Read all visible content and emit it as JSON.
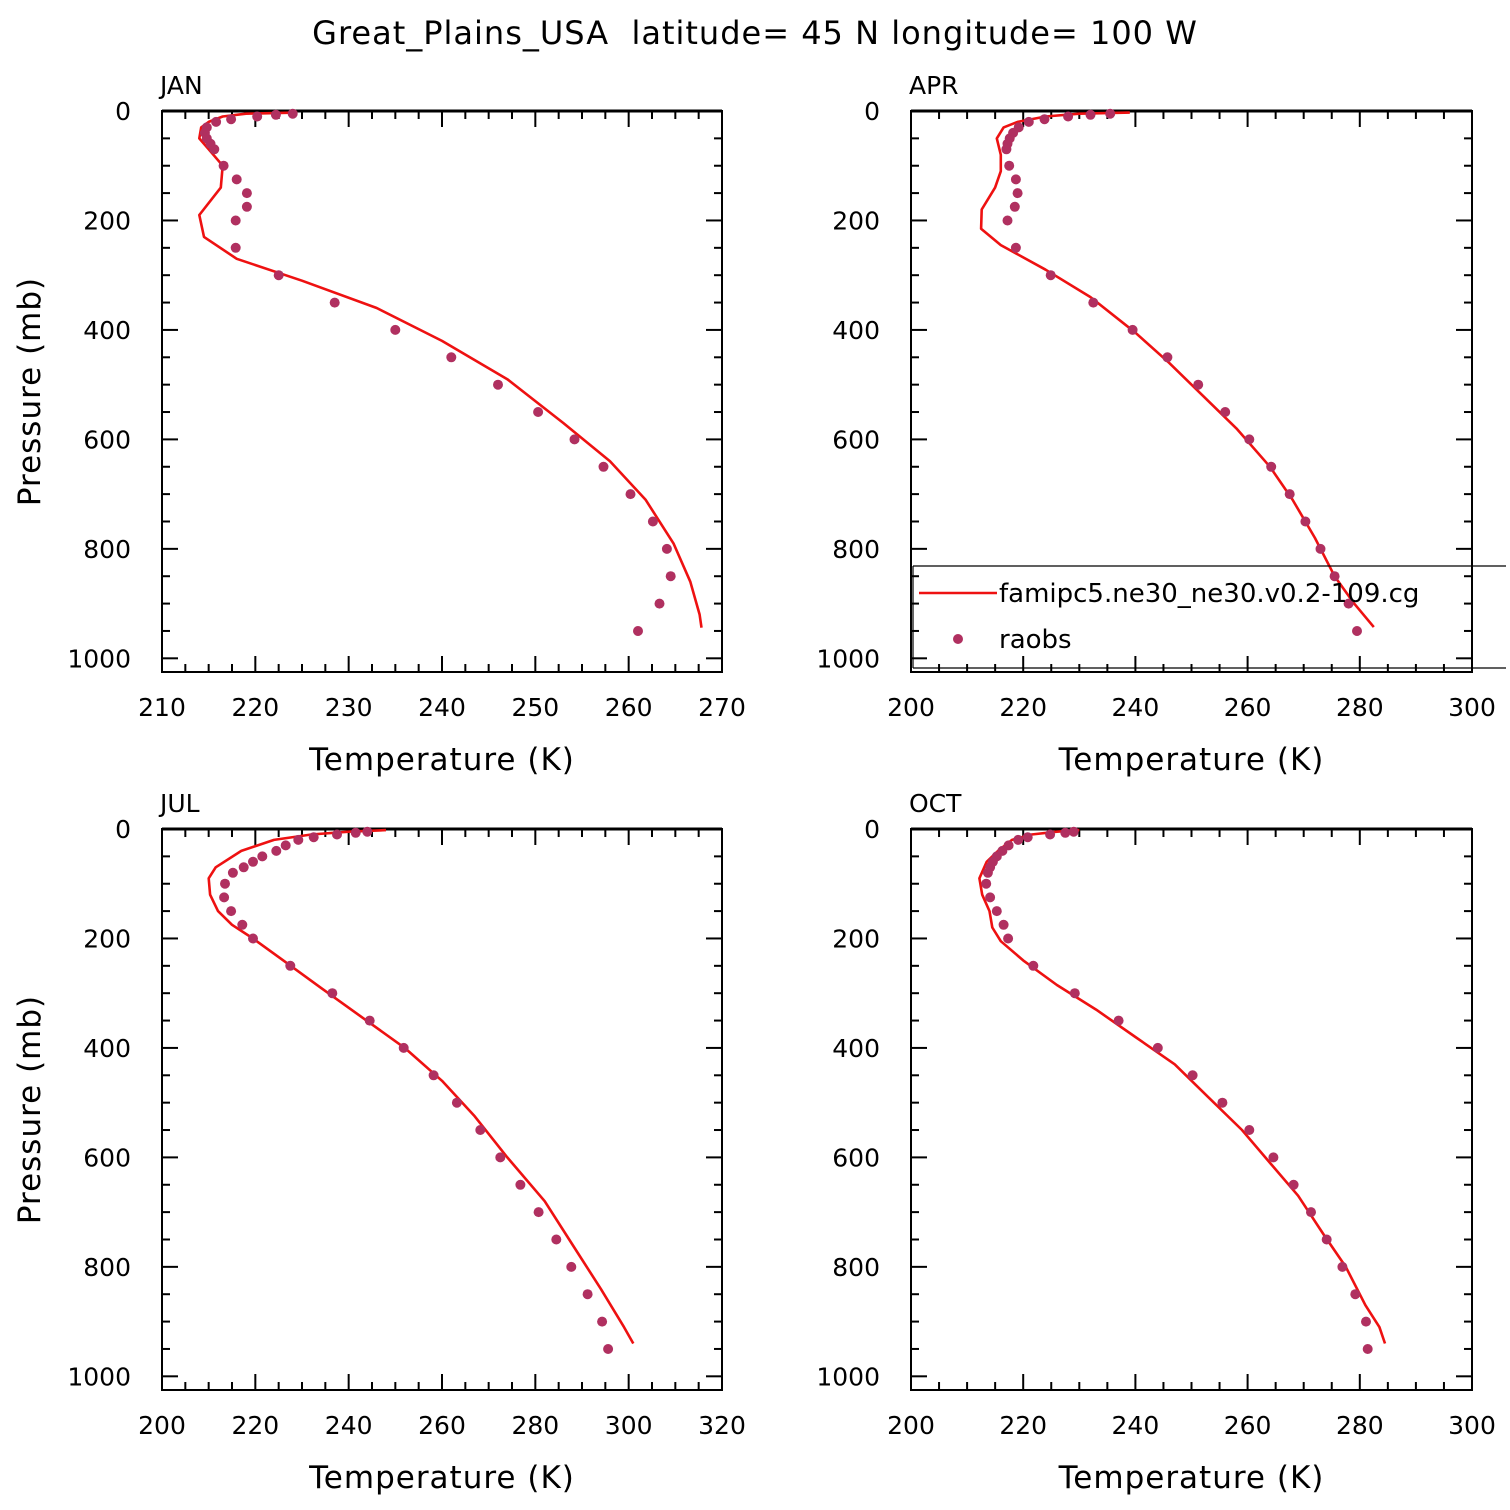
{
  "figure": {
    "title": "Great_Plains_USA  latitude= 45 N longitude= 100 W"
  },
  "colors": {
    "model": "#ee1111",
    "obs": "#b03060",
    "axis": "#000000"
  },
  "legend": {
    "model_label": "famipc5.ne30_ne30.v0.2-109.cg",
    "obs_label": "raobs"
  },
  "chart_data": [
    {
      "type": "line",
      "panel": "JAN",
      "title": "JAN",
      "xlabel": "Temperature (K)",
      "ylabel": "Pressure (mb)",
      "xlim": [
        210,
        270
      ],
      "ylim": [
        1025,
        0
      ],
      "xticks": [
        210,
        220,
        230,
        240,
        250,
        260,
        270
      ],
      "yticks": [
        0,
        200,
        400,
        600,
        800,
        1000
      ],
      "grid": false,
      "series": [
        {
          "name": "famipc5.ne30_ne30.v0.2-109.cg",
          "kind": "line",
          "points": [
            [
              224.5,
              3
            ],
            [
              219,
              5
            ],
            [
              216.5,
              10
            ],
            [
              215,
              20
            ],
            [
              214.2,
              30
            ],
            [
              214,
              50
            ],
            [
              215,
              70
            ],
            [
              216.5,
              100
            ],
            [
              216.3,
              140
            ],
            [
              214,
              190
            ],
            [
              214.5,
              230
            ],
            [
              218,
              270
            ],
            [
              225,
              310
            ],
            [
              233,
              360
            ],
            [
              240,
              420
            ],
            [
              247,
              490
            ],
            [
              253,
              570
            ],
            [
              258,
              640
            ],
            [
              261.8,
              710
            ],
            [
              264.8,
              790
            ],
            [
              266.6,
              860
            ],
            [
              267.6,
              920
            ],
            [
              267.8,
              944
            ]
          ]
        },
        {
          "name": "raobs",
          "kind": "scatter",
          "points": [
            [
              224,
              5
            ],
            [
              222.2,
              7
            ],
            [
              220.2,
              10
            ],
            [
              217.4,
              15
            ],
            [
              215.8,
              20
            ],
            [
              214.8,
              30
            ],
            [
              214.6,
              40
            ],
            [
              214.8,
              50
            ],
            [
              215.2,
              60
            ],
            [
              215.6,
              70
            ],
            [
              216.6,
              100
            ],
            [
              218,
              125
            ],
            [
              219.1,
              150
            ],
            [
              219.1,
              175
            ],
            [
              217.9,
              200
            ],
            [
              217.9,
              250
            ],
            [
              222.5,
              300
            ],
            [
              228.5,
              350
            ],
            [
              235,
              400
            ],
            [
              241,
              450
            ],
            [
              246,
              500
            ],
            [
              250.3,
              550
            ],
            [
              254.2,
              600
            ],
            [
              257.3,
              650
            ],
            [
              260.2,
              700
            ],
            [
              262.6,
              750
            ],
            [
              264.1,
              800
            ],
            [
              264.5,
              850
            ],
            [
              263.3,
              900
            ],
            [
              261,
              950
            ]
          ]
        }
      ]
    },
    {
      "type": "line",
      "panel": "APR",
      "title": "APR",
      "xlabel": "Temperature (K)",
      "ylabel": "",
      "xlim": [
        200,
        300
      ],
      "ylim": [
        1025,
        0
      ],
      "xticks": [
        200,
        220,
        240,
        260,
        280,
        300
      ],
      "yticks": [
        0,
        200,
        400,
        600,
        800,
        1000
      ],
      "grid": false,
      "legend_placement": "bottom-right",
      "series": [
        {
          "name": "famipc5.ne30_ne30.v0.2-109.cg",
          "kind": "line",
          "points": [
            [
              239,
              3
            ],
            [
              230,
              5
            ],
            [
              224,
              10
            ],
            [
              219,
              20
            ],
            [
              216.5,
              30
            ],
            [
              215.3,
              50
            ],
            [
              216,
              80
            ],
            [
              216,
              110
            ],
            [
              215,
              140
            ],
            [
              212.6,
              180
            ],
            [
              212.5,
              215
            ],
            [
              216,
              245
            ],
            [
              224,
              290
            ],
            [
              232,
              340
            ],
            [
              240,
              405
            ],
            [
              246,
              460
            ],
            [
              252,
              520
            ],
            [
              258,
              580
            ],
            [
              264,
              650
            ],
            [
              268,
              710
            ],
            [
              272,
              780
            ],
            [
              275.5,
              850
            ],
            [
              279,
              900
            ],
            [
              282.5,
              943
            ]
          ]
        },
        {
          "name": "raobs",
          "kind": "scatter",
          "points": [
            [
              235.5,
              5
            ],
            [
              232,
              7
            ],
            [
              228,
              10
            ],
            [
              223.8,
              15
            ],
            [
              221,
              20
            ],
            [
              219.2,
              30
            ],
            [
              218.2,
              40
            ],
            [
              217.6,
              50
            ],
            [
              217.2,
              60
            ],
            [
              217,
              70
            ],
            [
              217.5,
              100
            ],
            [
              218.7,
              125
            ],
            [
              219,
              150
            ],
            [
              218.5,
              175
            ],
            [
              217.2,
              200
            ],
            [
              218.7,
              250
            ],
            [
              224.9,
              300
            ],
            [
              232.5,
              350
            ],
            [
              239.5,
              400
            ],
            [
              245.7,
              450
            ],
            [
              251.2,
              500
            ],
            [
              256,
              550
            ],
            [
              260.3,
              600
            ],
            [
              264.2,
              650
            ],
            [
              267.5,
              700
            ],
            [
              270.3,
              750
            ],
            [
              273,
              800
            ],
            [
              275.5,
              850
            ],
            [
              278,
              900
            ],
            [
              279.5,
              950
            ]
          ]
        }
      ]
    },
    {
      "type": "line",
      "panel": "JUL",
      "title": "JUL",
      "xlabel": "Temperature (K)",
      "ylabel": "Pressure (mb)",
      "xlim": [
        200,
        320
      ],
      "ylim": [
        1025,
        0
      ],
      "xticks": [
        200,
        220,
        240,
        260,
        280,
        300,
        320
      ],
      "yticks": [
        0,
        200,
        400,
        600,
        800,
        1000
      ],
      "grid": false,
      "series": [
        {
          "name": "famipc5.ne30_ne30.v0.2-109.cg",
          "kind": "line",
          "points": [
            [
              248,
              2
            ],
            [
              240,
              5
            ],
            [
              232,
              10
            ],
            [
              224,
              20
            ],
            [
              217,
              40
            ],
            [
              211.5,
              70
            ],
            [
              210,
              90
            ],
            [
              210.3,
              120
            ],
            [
              212,
              150
            ],
            [
              215,
              175
            ],
            [
              219.5,
              200
            ],
            [
              226,
              240
            ],
            [
              234,
              290
            ],
            [
              243,
              345
            ],
            [
              252,
              400
            ],
            [
              260,
              460
            ],
            [
              267,
              525
            ],
            [
              274,
              600
            ],
            [
              282,
              680
            ],
            [
              288,
              760
            ],
            [
              294,
              840
            ],
            [
              299,
              910
            ],
            [
              301,
              940
            ]
          ]
        },
        {
          "name": "raobs",
          "kind": "scatter",
          "points": [
            [
              244,
              5
            ],
            [
              241.5,
              7
            ],
            [
              237.5,
              10
            ],
            [
              232.5,
              15
            ],
            [
              229.2,
              20
            ],
            [
              226.5,
              30
            ],
            [
              224.5,
              40
            ],
            [
              221.5,
              50
            ],
            [
              219.5,
              60
            ],
            [
              217.5,
              70
            ],
            [
              215.2,
              80
            ],
            [
              213.5,
              100
            ],
            [
              213.3,
              125
            ],
            [
              214.8,
              150
            ],
            [
              217.2,
              175
            ],
            [
              219.5,
              200
            ],
            [
              227.5,
              250
            ],
            [
              236.5,
              300
            ],
            [
              244.5,
              350
            ],
            [
              251.8,
              400
            ],
            [
              258.2,
              450
            ],
            [
              263.2,
              500
            ],
            [
              268.2,
              550
            ],
            [
              272.5,
              600
            ],
            [
              276.8,
              650
            ],
            [
              280.7,
              700
            ],
            [
              284.5,
              750
            ],
            [
              287.7,
              800
            ],
            [
              291.2,
              850
            ],
            [
              294.3,
              900
            ],
            [
              295.6,
              950
            ]
          ]
        }
      ]
    },
    {
      "type": "line",
      "panel": "OCT",
      "title": "OCT",
      "xlabel": "Temperature (K)",
      "ylabel": "",
      "xlim": [
        200,
        300
      ],
      "ylim": [
        1025,
        0
      ],
      "xticks": [
        200,
        220,
        240,
        260,
        280,
        300
      ],
      "yticks": [
        0,
        200,
        400,
        600,
        800,
        1000
      ],
      "grid": false,
      "series": [
        {
          "name": "famipc5.ne30_ne30.v0.2-109.cg",
          "kind": "line",
          "points": [
            [
              230,
              2
            ],
            [
              226,
              5
            ],
            [
              221.5,
              10
            ],
            [
              218,
              20
            ],
            [
              215.5,
              40
            ],
            [
              213.5,
              60
            ],
            [
              212.2,
              90
            ],
            [
              212.7,
              120
            ],
            [
              214,
              150
            ],
            [
              214.5,
              180
            ],
            [
              216,
              205
            ],
            [
              220,
              240
            ],
            [
              226,
              285
            ],
            [
              233,
              330
            ],
            [
              240,
              380
            ],
            [
              247,
              430
            ],
            [
              253,
              490
            ],
            [
              259,
              550
            ],
            [
              264,
              610
            ],
            [
              269,
              670
            ],
            [
              273.5,
              740
            ],
            [
              277.5,
              800
            ],
            [
              281,
              870
            ],
            [
              283.5,
              910
            ],
            [
              284.5,
              940
            ]
          ]
        },
        {
          "name": "raobs",
          "kind": "scatter",
          "points": [
            [
              229,
              5
            ],
            [
              227.5,
              7
            ],
            [
              224.8,
              10
            ],
            [
              220.8,
              15
            ],
            [
              219.1,
              20
            ],
            [
              217.4,
              30
            ],
            [
              216.3,
              40
            ],
            [
              215.3,
              50
            ],
            [
              214.6,
              60
            ],
            [
              214.1,
              70
            ],
            [
              213.7,
              80
            ],
            [
              213.4,
              100
            ],
            [
              214.1,
              125
            ],
            [
              215.3,
              150
            ],
            [
              216.5,
              175
            ],
            [
              217.3,
              200
            ],
            [
              221.8,
              250
            ],
            [
              229.2,
              300
            ],
            [
              237,
              350
            ],
            [
              244,
              400
            ],
            [
              250.2,
              450
            ],
            [
              255.5,
              500
            ],
            [
              260.3,
              550
            ],
            [
              264.6,
              600
            ],
            [
              268.2,
              650
            ],
            [
              271.3,
              700
            ],
            [
              274.1,
              750
            ],
            [
              276.9,
              800
            ],
            [
              279.2,
              850
            ],
            [
              281.1,
              900
            ],
            [
              281.4,
              950
            ]
          ]
        }
      ]
    }
  ]
}
